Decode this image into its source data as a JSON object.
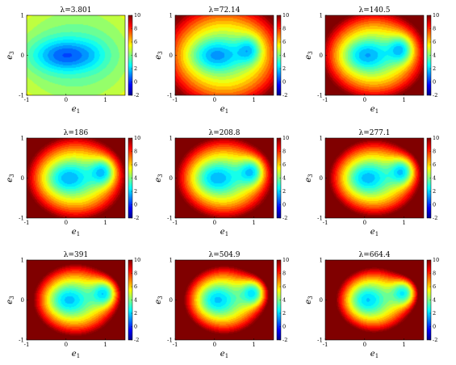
{
  "chart_data": {
    "type": "heatmap",
    "layout": "3x3 grid of filled contour plots",
    "xlabel": "e",
    "xlabel_sub": "1",
    "ylabel": "e",
    "ylabel_sub": "3",
    "xlim": [
      -1,
      1.5
    ],
    "ylim": [
      -1,
      1
    ],
    "xticks": [
      "-1",
      "0",
      "1"
    ],
    "yticks": [
      "-1",
      "0",
      "1"
    ],
    "colorbar": {
      "colormap": "jet",
      "range": [
        -2,
        10
      ],
      "ticks": [
        "-2",
        "0",
        "2",
        "4",
        "6",
        "8",
        "10"
      ]
    },
    "panels": [
      {
        "title": "λ=3.801",
        "lambda": 3.801
      },
      {
        "title": "λ=72.14",
        "lambda": 72.14
      },
      {
        "title": "λ=140.5",
        "lambda": 140.5
      },
      {
        "title": "λ=186",
        "lambda": 186
      },
      {
        "title": "λ=208.8",
        "lambda": 208.8
      },
      {
        "title": "λ=277.1",
        "lambda": 277.1
      },
      {
        "title": "λ=391",
        "lambda": 391
      },
      {
        "title": "λ=504.9",
        "lambda": 504.9
      },
      {
        "title": "λ=664.4",
        "lambda": 664.4
      }
    ]
  }
}
